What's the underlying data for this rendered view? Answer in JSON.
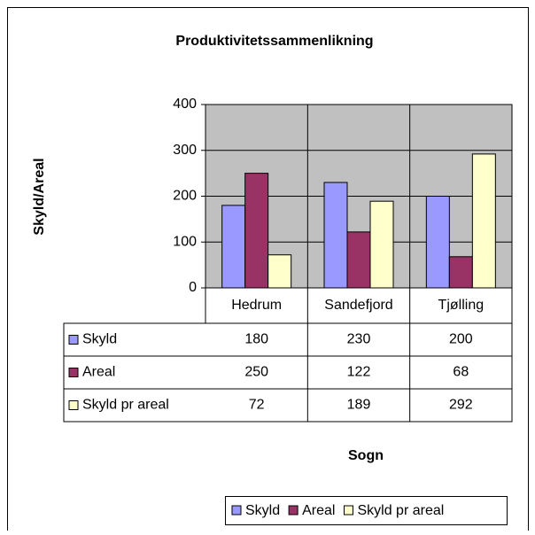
{
  "chart_data": {
    "type": "bar",
    "title": "Produktivitetssammenlikning",
    "x_label": "Sogn",
    "y_label": "Skyld/Areal",
    "categories": [
      "Hedrum",
      "Sandefjord",
      "Tjølling"
    ],
    "series": [
      {
        "name": "Skyld",
        "color": "#9999ff",
        "values": [
          180,
          230,
          200
        ]
      },
      {
        "name": "Areal",
        "color": "#993366",
        "values": [
          250,
          122,
          68
        ]
      },
      {
        "name": "Skyld pr areal",
        "color": "#ffffcc",
        "values": [
          72,
          189,
          292
        ]
      }
    ],
    "ylim": [
      0,
      400
    ],
    "yticks": [
      0,
      100,
      200,
      300,
      400
    ],
    "grid": true,
    "plot_background": "#c0c0c0"
  }
}
